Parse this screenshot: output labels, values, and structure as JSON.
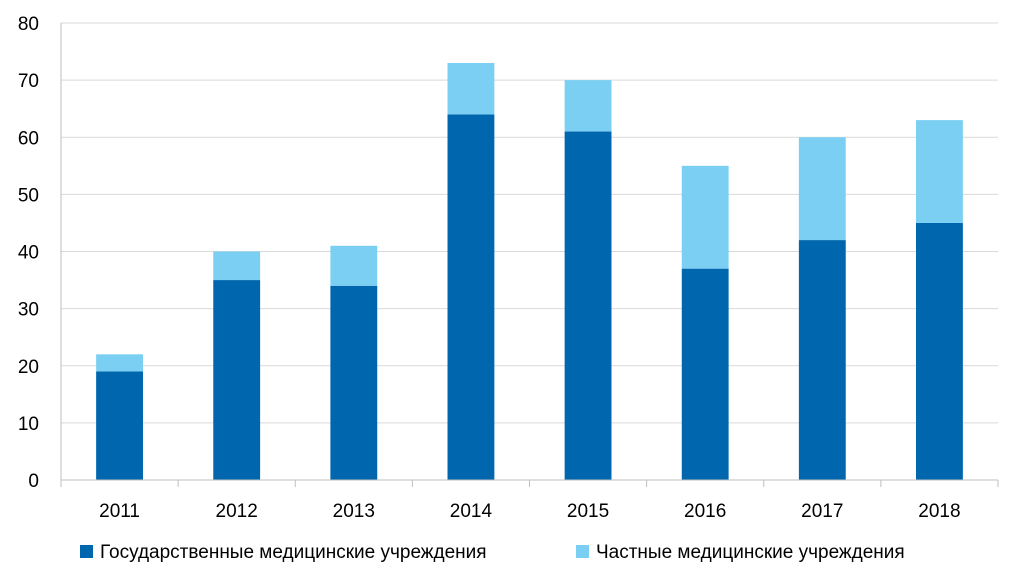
{
  "chart_data": {
    "type": "bar",
    "stacked": true,
    "categories": [
      "2011",
      "2012",
      "2013",
      "2014",
      "2015",
      "2016",
      "2017",
      "2018"
    ],
    "series": [
      {
        "name": "Государственные медицинские учреждения",
        "values": [
          19,
          35,
          34,
          64,
          61,
          37,
          42,
          45
        ],
        "color": "#0066ad"
      },
      {
        "name": "Частные медицинские учреждения",
        "values": [
          3,
          5,
          7,
          9,
          9,
          18,
          18,
          18
        ],
        "color": "#7acff3"
      }
    ],
    "yticks": [
      "0",
      "10",
      "20",
      "30",
      "40",
      "50",
      "60",
      "70",
      "80"
    ],
    "ylim": [
      0,
      80
    ],
    "grid": true,
    "legend_position": "bottom",
    "title": "",
    "xlabel": "",
    "ylabel": ""
  }
}
